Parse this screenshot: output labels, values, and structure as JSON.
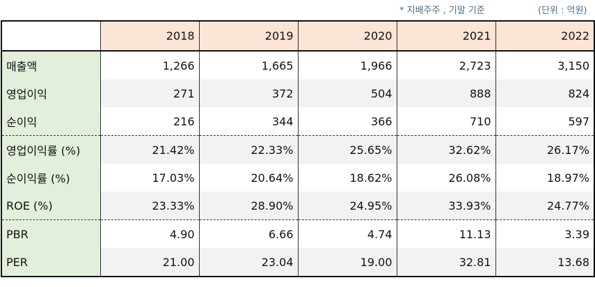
{
  "notes": {
    "basis": "* 지배주주 , 기말 기준",
    "unit": "(단위 : 억원)"
  },
  "table": {
    "years": [
      "2018",
      "2019",
      "2020",
      "2021",
      "2022"
    ],
    "rows": [
      {
        "label": "매출액",
        "values": [
          "1,266",
          "1,665",
          "1,966",
          "2,723",
          "3,150"
        ]
      },
      {
        "label": "영업이익",
        "values": [
          "271",
          "372",
          "504",
          "888",
          "824"
        ]
      },
      {
        "label": "순이익",
        "values": [
          "216",
          "344",
          "366",
          "710",
          "597"
        ]
      },
      {
        "label": "영업이익률 (%)",
        "values": [
          "21.42%",
          "22.33%",
          "25.65%",
          "32.62%",
          "26.17%"
        ]
      },
      {
        "label": "순이익률 (%)",
        "values": [
          "17.03%",
          "20.64%",
          "18.62%",
          "26.08%",
          "18.97%"
        ]
      },
      {
        "label": "ROE (%)",
        "values": [
          "23.33%",
          "28.90%",
          "24.95%",
          "33.93%",
          "24.77%"
        ]
      },
      {
        "label": "PBR",
        "values": [
          "4.90",
          "6.66",
          "4.74",
          "11.13",
          "3.39"
        ]
      },
      {
        "label": "PER",
        "values": [
          "21.00",
          "23.04",
          "19.00",
          "32.81",
          "13.68"
        ]
      }
    ]
  }
}
